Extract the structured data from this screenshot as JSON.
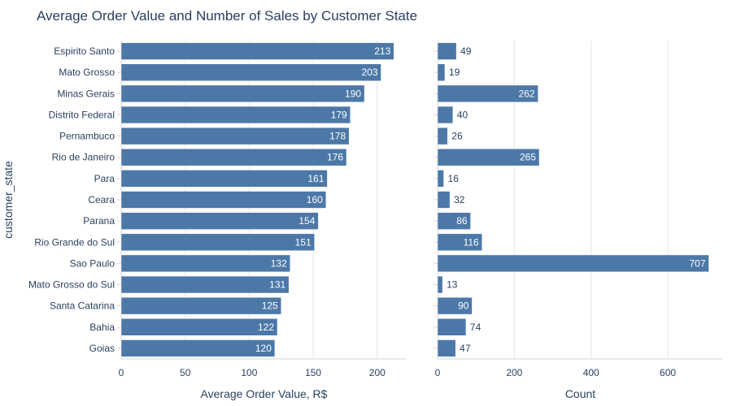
{
  "chart_data": {
    "type": "bar",
    "orientation": "horizontal",
    "title": "Average Order Value and Number of Sales by Customer State",
    "ylabel": "customer_state",
    "bar_color": "#4c78a8",
    "grid_color": "#e5e5e5",
    "categories": [
      "Espirito Santo",
      "Mato Grosso",
      "Minas Gerais",
      "Distrito Federal",
      "Pernambuco",
      "Rio de Janeiro",
      "Para",
      "Ceara",
      "Parana",
      "Rio Grande do Sul",
      "Sao Paulo",
      "Mato Grosso do Sul",
      "Santa Catarina",
      "Bahia",
      "Goias"
    ],
    "panels": [
      {
        "name": "avg-order-value",
        "xlabel": "Average Order Value, R$",
        "xlim": [
          0,
          223
        ],
        "xticks": [
          0,
          50,
          100,
          150,
          200
        ],
        "values": [
          213,
          203,
          190,
          179,
          178,
          176,
          161,
          160,
          154,
          151,
          132,
          131,
          125,
          122,
          120
        ]
      },
      {
        "name": "count",
        "xlabel": "Count",
        "xlim": [
          0,
          744
        ],
        "xticks": [
          0,
          200,
          400,
          600
        ],
        "values": [
          49,
          19,
          262,
          40,
          26,
          265,
          16,
          32,
          86,
          116,
          707,
          13,
          90,
          74,
          47
        ]
      }
    ]
  }
}
